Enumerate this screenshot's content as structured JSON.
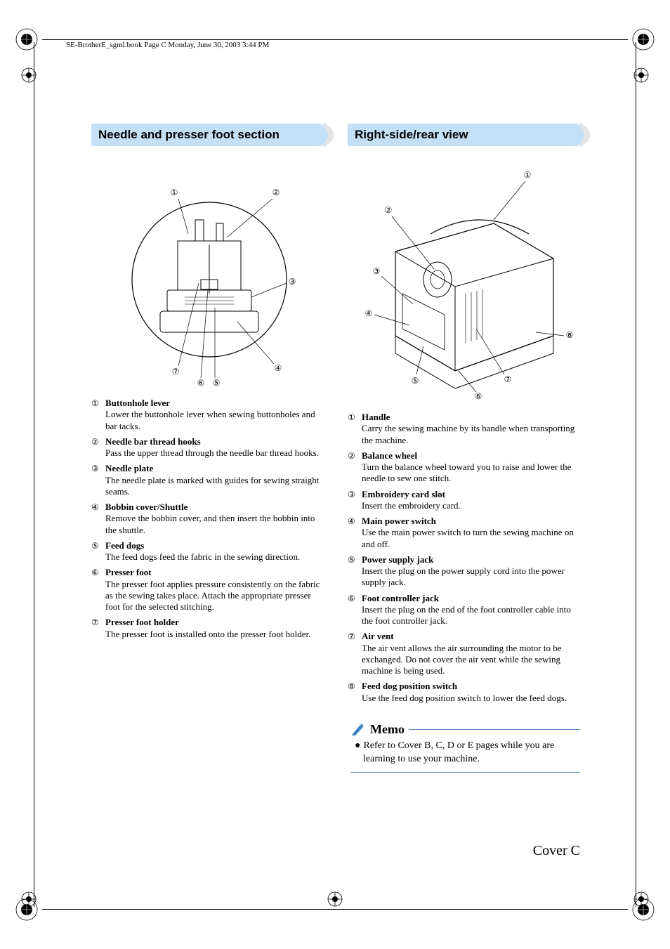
{
  "header_line": "SE-BrotherE_sgml.book  Page C  Monday, June 30, 2003  3:44 PM",
  "page_label": "Cover C",
  "colors": {
    "header_bg": "#c4e0f7",
    "memo_rule": "#5a8fc4",
    "memo_icon": "#3a7fc4",
    "text": "#000000",
    "bg": "#ffffff"
  },
  "left": {
    "title": "Needle and presser foot section",
    "callouts": [
      "1",
      "2",
      "3",
      "4",
      "5",
      "6",
      "7"
    ],
    "items": [
      {
        "num": "a",
        "title": "Buttonhole lever",
        "desc": "Lower the buttonhole lever when sewing buttonholes and bar tacks."
      },
      {
        "num": "b",
        "title": "Needle bar thread hooks",
        "desc": "Pass the upper thread through the needle bar thread hooks."
      },
      {
        "num": "c",
        "title": "Needle plate",
        "desc": "The needle plate is marked with guides for sewing straight seams."
      },
      {
        "num": "d",
        "title": "Bobbin cover/Shuttle",
        "desc": "Remove the bobbin cover, and then insert the bobbin into the shuttle."
      },
      {
        "num": "e",
        "title": "Feed dogs",
        "desc": "The feed dogs feed the fabric in the sewing direction."
      },
      {
        "num": "f",
        "title": "Presser foot",
        "desc": "The presser foot applies pressure consistently on the fabric as the sewing takes place. Attach the appropriate presser foot for the selected stitching."
      },
      {
        "num": "g",
        "title": "Presser foot holder",
        "desc": "The presser foot is installed onto the presser foot holder."
      }
    ]
  },
  "right": {
    "title": "Right-side/rear view",
    "callouts": [
      "1",
      "2",
      "3",
      "4",
      "5",
      "6",
      "7",
      "8"
    ],
    "items": [
      {
        "num": "a",
        "title": "Handle",
        "desc": "Carry the sewing machine by its handle when transporting the machine."
      },
      {
        "num": "b",
        "title": "Balance wheel",
        "desc": "Turn the balance wheel toward you to raise and lower the needle to sew one stitch."
      },
      {
        "num": "c",
        "title": "Embroidery card slot",
        "desc": "Insert the embroidery card."
      },
      {
        "num": "d",
        "title": "Main power switch",
        "desc": "Use the main power switch to turn the sewing machine on and off."
      },
      {
        "num": "e",
        "title": "Power supply jack",
        "desc": "Insert the plug on the power supply cord into the power supply jack."
      },
      {
        "num": "f",
        "title": "Foot controller jack",
        "desc": "Insert the plug on the end of the foot controller cable into the foot controller jack."
      },
      {
        "num": "g",
        "title": "Air vent",
        "desc": "The air vent allows the air surrounding the motor to be exchanged. Do not cover the air vent while the sewing machine is being used."
      },
      {
        "num": "h",
        "title": "Feed dog position switch",
        "desc": "Use the feed dog position switch to lower the feed dogs."
      }
    ]
  },
  "memo": {
    "title": "Memo",
    "bullet": "●",
    "text": "Refer to Cover B, C, D or E pages while you are learning to use your machine."
  },
  "circled_map": {
    "a": "①",
    "b": "②",
    "c": "③",
    "d": "④",
    "e": "⑤",
    "f": "⑥",
    "g": "⑦",
    "h": "⑧"
  },
  "callout_glyphs": [
    "①",
    "②",
    "③",
    "④",
    "⑤",
    "⑥",
    "⑦",
    "⑧"
  ]
}
